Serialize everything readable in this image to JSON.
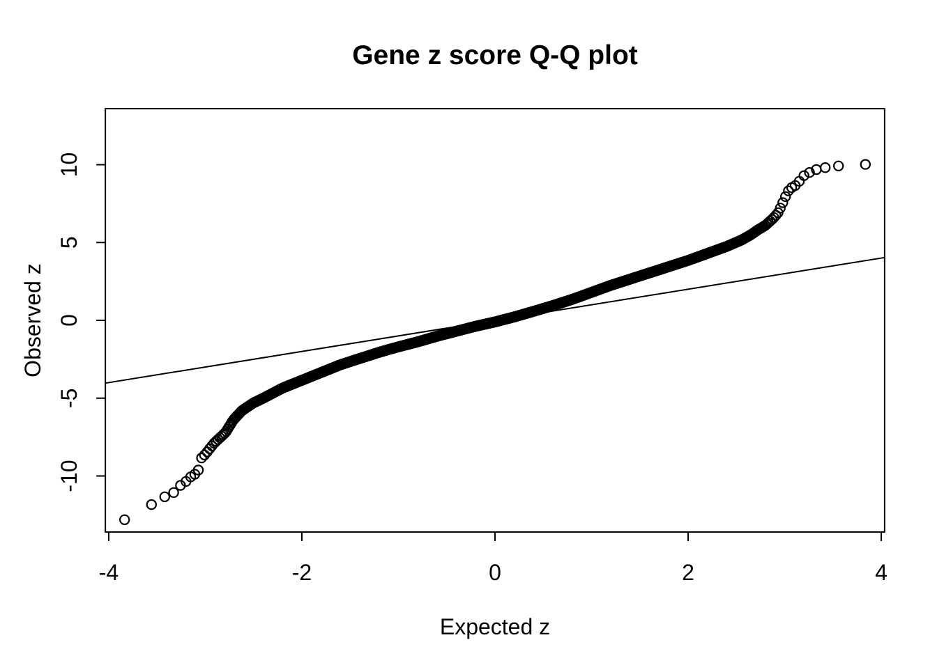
{
  "chart_data": {
    "type": "scatter",
    "variant": "qq-plot",
    "title": "Gene z score Q-Q plot",
    "xlabel": "Expected z",
    "ylabel": "Observed z",
    "x_ticks": [
      -4,
      -2,
      0,
      2,
      4
    ],
    "y_ticks": [
      -10,
      -5,
      0,
      5,
      10
    ],
    "xlim": [
      -4.035,
      4.035
    ],
    "ylim": [
      -13.6,
      13.6
    ],
    "grid": false,
    "legend": null,
    "background_color": "#ffffff",
    "point_color": "#000000",
    "line_color": "#000000",
    "marker": "open-circle",
    "n_points": 8000,
    "reference_line": {
      "slope": 1,
      "intercept": 0
    },
    "curve_anchors": [
      [
        -4.0,
        -13.3
      ],
      [
        -3.75,
        -12.55
      ],
      [
        -3.56,
        -11.85
      ],
      [
        -3.45,
        -11.4
      ],
      [
        -3.38,
        -11.25
      ],
      [
        -3.31,
        -11.0
      ],
      [
        -3.25,
        -10.55
      ],
      [
        -3.2,
        -10.35
      ],
      [
        -3.15,
        -10.05
      ],
      [
        -3.1,
        -9.85
      ],
      [
        -3.07,
        -9.6
      ],
      [
        -3.04,
        -8.85
      ],
      [
        -3.0,
        -8.6
      ],
      [
        -2.91,
        -7.9
      ],
      [
        -2.79,
        -7.2
      ],
      [
        -2.71,
        -6.4
      ],
      [
        -2.62,
        -5.8
      ],
      [
        -2.5,
        -5.3
      ],
      [
        -2.4,
        -5.0
      ],
      [
        -2.2,
        -4.35
      ],
      [
        -2.0,
        -3.85
      ],
      [
        -1.8,
        -3.35
      ],
      [
        -1.6,
        -2.85
      ],
      [
        -1.4,
        -2.45
      ],
      [
        -1.2,
        -2.05
      ],
      [
        -1.0,
        -1.7
      ],
      [
        -0.8,
        -1.38
      ],
      [
        -0.6,
        -1.02
      ],
      [
        -0.4,
        -0.7
      ],
      [
        -0.2,
        -0.38
      ],
      [
        0.0,
        -0.1
      ],
      [
        0.2,
        0.22
      ],
      [
        0.4,
        0.58
      ],
      [
        0.6,
        0.95
      ],
      [
        0.8,
        1.35
      ],
      [
        1.0,
        1.8
      ],
      [
        1.2,
        2.25
      ],
      [
        1.4,
        2.65
      ],
      [
        1.6,
        3.05
      ],
      [
        1.8,
        3.45
      ],
      [
        2.0,
        3.85
      ],
      [
        2.2,
        4.3
      ],
      [
        2.4,
        4.75
      ],
      [
        2.55,
        5.15
      ],
      [
        2.65,
        5.5
      ],
      [
        2.72,
        5.8
      ],
      [
        2.8,
        6.1
      ],
      [
        2.88,
        6.55
      ],
      [
        2.93,
        6.9
      ],
      [
        2.97,
        7.4
      ],
      [
        3.0,
        7.85
      ],
      [
        3.05,
        8.45
      ],
      [
        3.12,
        8.7
      ],
      [
        3.2,
        9.3
      ],
      [
        3.3,
        9.65
      ],
      [
        3.45,
        9.85
      ],
      [
        3.6,
        9.95
      ],
      [
        3.75,
        10.0
      ],
      [
        4.0,
        10.05
      ]
    ]
  }
}
